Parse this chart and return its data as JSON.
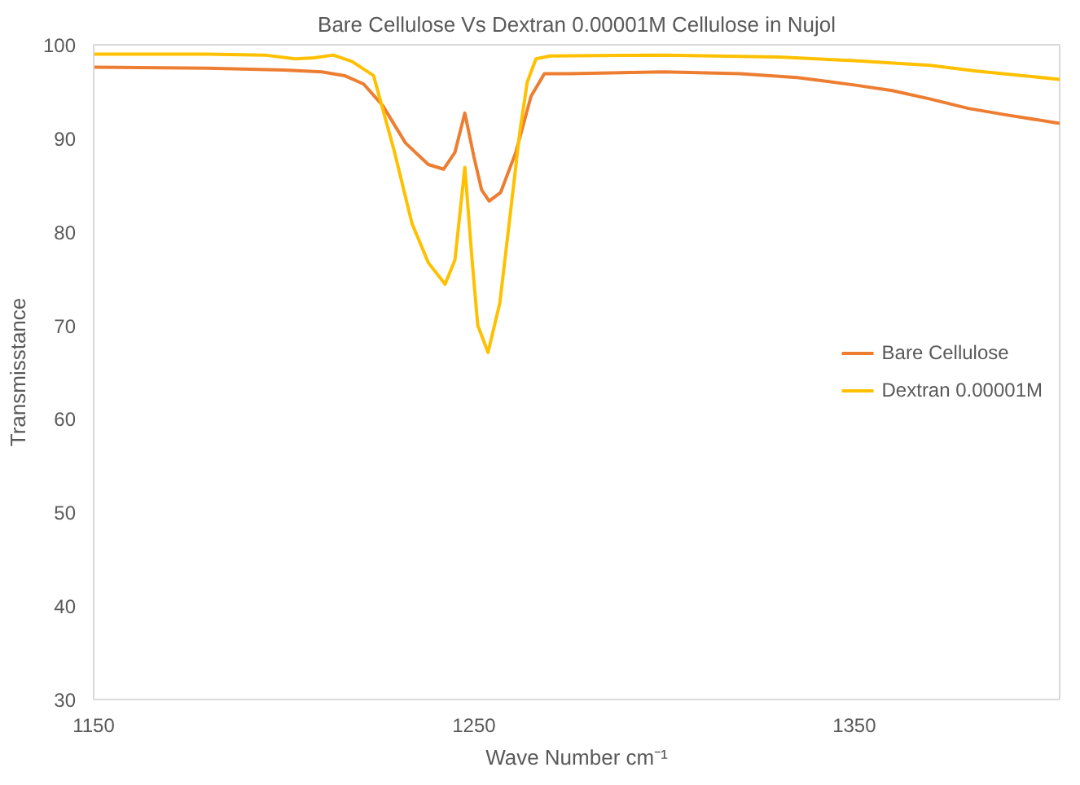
{
  "chart_data": {
    "type": "line",
    "title": "Bare Cellulose Vs Dextran 0.00001M Cellulose in Nujol",
    "xlabel": "Wave Number cm⁻¹",
    "ylabel": "Transmisstance",
    "xlim": [
      1150,
      1404
    ],
    "ylim": [
      30,
      100
    ],
    "xticks": [
      1150,
      1250,
      1350
    ],
    "yticks": [
      30,
      40,
      50,
      60,
      70,
      80,
      90,
      100
    ],
    "grid": false,
    "legend": "right",
    "marker": "none",
    "line_style": "solid",
    "series": [
      {
        "name": "Bare Cellulose",
        "color": "#ed7d31",
        "x": [
          1150,
          1180,
          1200,
          1210,
          1216,
          1221,
          1226,
          1232,
          1238,
          1242,
          1245,
          1247.6,
          1250,
          1252,
          1254,
          1257,
          1261,
          1265,
          1268.5,
          1275,
          1300,
          1320,
          1335,
          1350,
          1360,
          1370,
          1380,
          1390,
          1404
        ],
        "values": [
          97.6,
          97.5,
          97.3,
          97.1,
          96.7,
          95.8,
          93.5,
          89.5,
          87.2,
          86.7,
          88.5,
          92.7,
          88,
          84.5,
          83.3,
          84.2,
          88.5,
          94.5,
          96.9,
          96.9,
          97.1,
          96.9,
          96.5,
          95.7,
          95.1,
          94.2,
          93.2,
          92.5,
          91.6
        ]
      },
      {
        "name": "Dextran 0.00001M",
        "color": "#ffc000",
        "x": [
          1150,
          1180,
          1195,
          1203,
          1208,
          1213,
          1218,
          1223.6,
          1229,
          1233.7,
          1238,
          1242.4,
          1245,
          1247.6,
          1249.5,
          1251,
          1253.7,
          1256.8,
          1259,
          1262,
          1264,
          1266.3,
          1270,
          1300,
          1330,
          1350,
          1370,
          1382,
          1404
        ],
        "values": [
          99.0,
          99.0,
          98.9,
          98.5,
          98.6,
          98.9,
          98.2,
          96.7,
          88.7,
          80.9,
          76.7,
          74.4,
          77,
          86.9,
          77,
          70,
          67.1,
          72.4,
          80,
          90.5,
          96,
          98.5,
          98.8,
          98.9,
          98.7,
          98.3,
          97.8,
          97.2,
          96.3
        ]
      }
    ]
  }
}
